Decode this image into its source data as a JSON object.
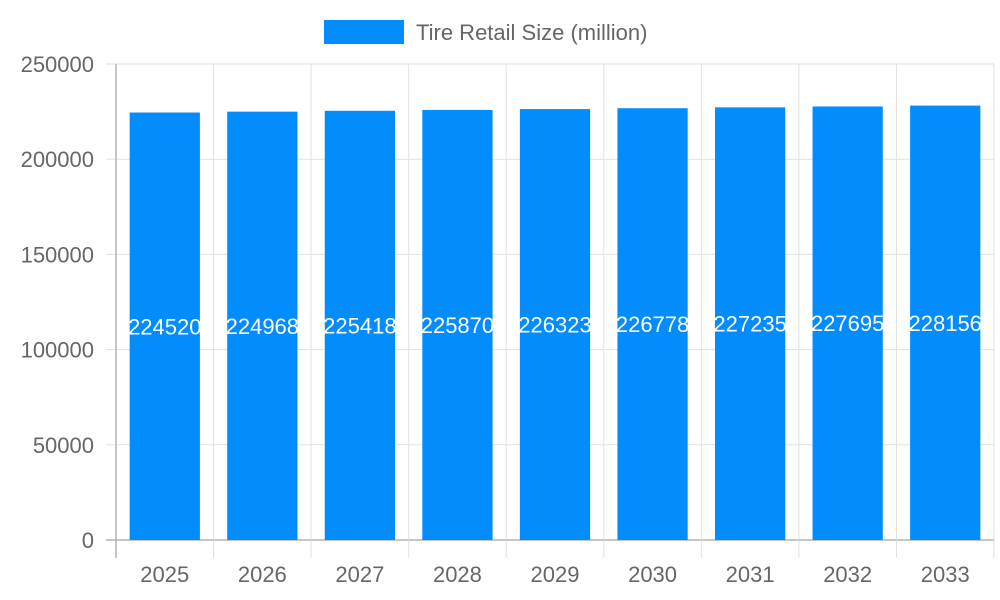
{
  "chart_data": {
    "type": "bar",
    "categories": [
      "2025",
      "2026",
      "2027",
      "2028",
      "2029",
      "2030",
      "2031",
      "2032",
      "2033"
    ],
    "series": [
      {
        "name": "Tire Retail Size (million)",
        "values": [
          224520,
          224968,
          225418,
          225870,
          226323,
          226778,
          227235,
          227695,
          228156
        ],
        "color": "#038cfc"
      }
    ],
    "data_labels": [
      "224520",
      "224968",
      "225418",
      "225870",
      "226323",
      "226778",
      "227235",
      "227695",
      "228156"
    ],
    "ylim": [
      0,
      250000
    ],
    "yticks": [
      "0",
      "50000",
      "100000",
      "150000",
      "200000",
      "250000"
    ],
    "grid": true,
    "legend": "top",
    "xlabel": "",
    "ylabel": ""
  },
  "colors": {
    "grid": "#e1e1e1",
    "axis": "#b3b3b3",
    "text": "#666666",
    "label": "#ffffff"
  }
}
